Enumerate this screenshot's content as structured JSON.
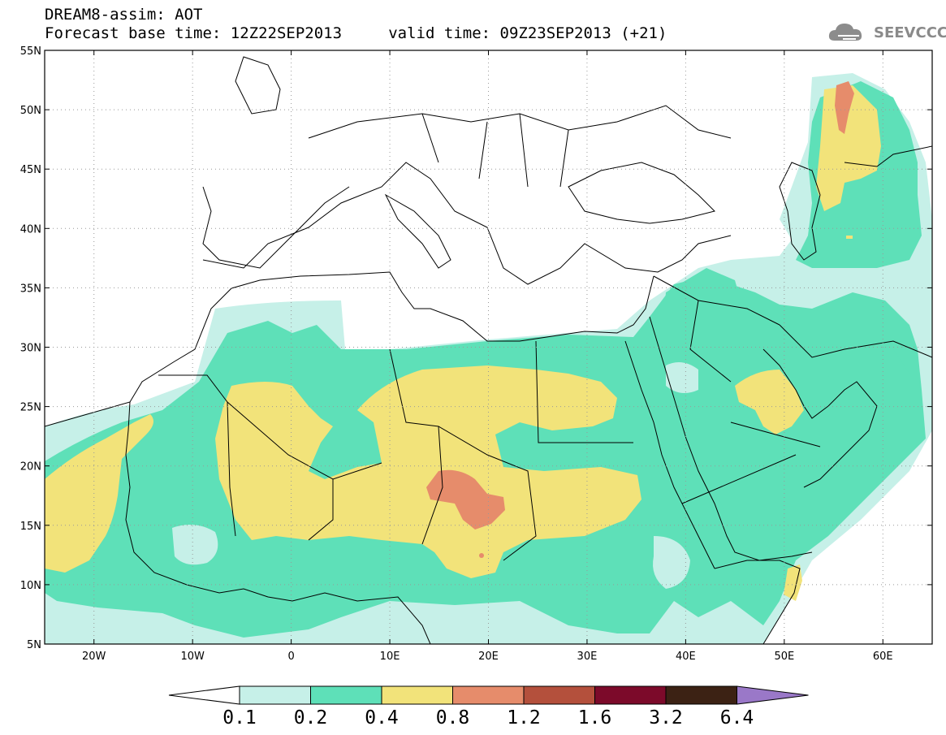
{
  "header": {
    "line1": "DREAM8-assim: AOT",
    "line2": "Forecast base time: 12Z22SEP2013     valid time: 09Z23SEP2013 (+21)"
  },
  "logo": {
    "text": "SEEVCCC",
    "icon": "cloud-icon"
  },
  "map": {
    "lon_range": [
      -25,
      65
    ],
    "lat_range": [
      5,
      55
    ],
    "lat_ticks": [
      "5N",
      "10N",
      "15N",
      "20N",
      "25N",
      "30N",
      "35N",
      "40N",
      "45N",
      "50N",
      "55N"
    ],
    "lon_ticks": [
      "20W",
      "10W",
      "0",
      "10E",
      "20E",
      "30E",
      "40E",
      "50E",
      "60E"
    ],
    "grid": "dotted"
  },
  "legend": {
    "labels": [
      "0.1",
      "0.2",
      "0.4",
      "0.8",
      "1.2",
      "1.6",
      "3.2",
      "6.4"
    ],
    "colors": [
      "#ffffff",
      "#c6f0e8",
      "#5ee0b8",
      "#f2e37a",
      "#e68c6b",
      "#b4503c",
      "#7c0a2a",
      "#3c2214",
      "#9a78c8"
    ]
  }
}
